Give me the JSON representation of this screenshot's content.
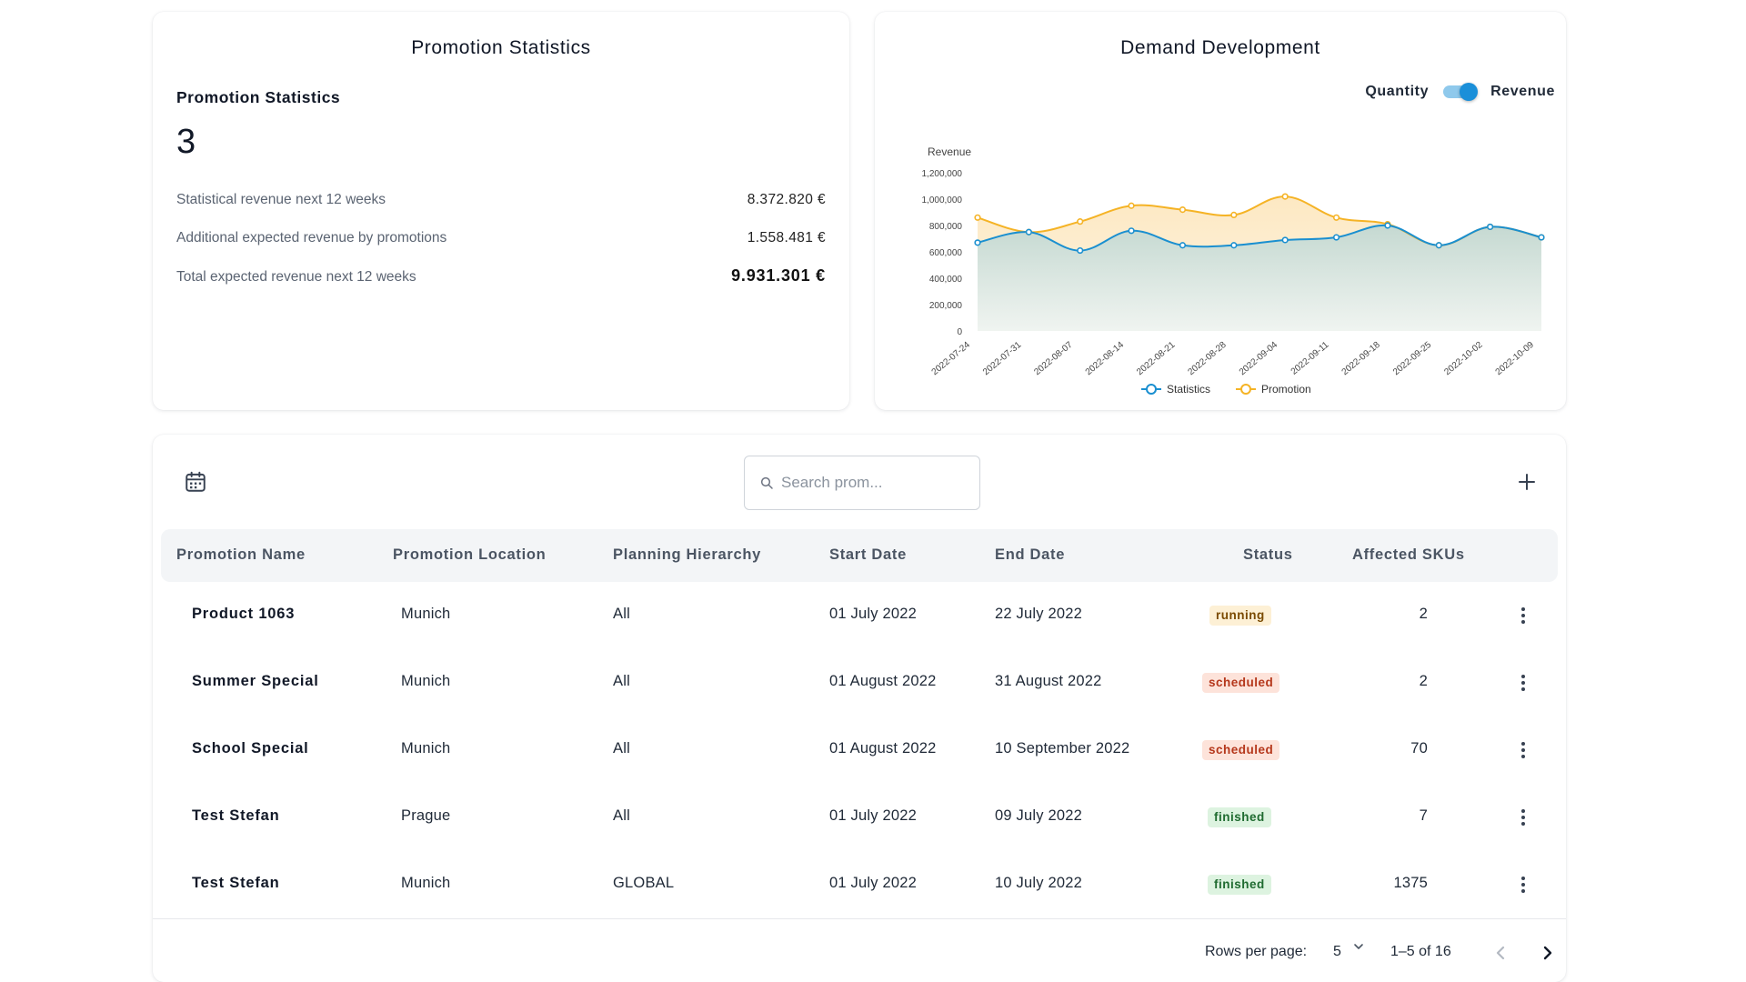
{
  "stats_card": {
    "title": "Promotion Statistics",
    "subtitle": "Promotion Statistics",
    "count": "3",
    "rows": [
      {
        "label": "Statistical revenue next 12 weeks",
        "value": "8.372.820 €"
      },
      {
        "label": "Additional expected revenue by promotions",
        "value": "1.558.481 €"
      },
      {
        "label": "Total expected revenue next 12 weeks",
        "value": "9.931.301 €"
      }
    ]
  },
  "demand_card": {
    "title": "Demand Development",
    "toggle": {
      "left_label": "Quantity",
      "right_label": "Revenue",
      "selected": "Revenue"
    }
  },
  "chart_data": {
    "type": "area",
    "title": "",
    "ylabel": "Revenue",
    "xlabel": "",
    "x": [
      "2022-07-24",
      "2022-07-31",
      "2022-08-07",
      "2022-08-14",
      "2022-08-21",
      "2022-08-28",
      "2022-09-04",
      "2022-09-11",
      "2022-09-18",
      "2022-09-25",
      "2022-10-02",
      "2022-10-09"
    ],
    "ylim": [
      0,
      1200000
    ],
    "yticks": [
      "0",
      "200,000",
      "400,000",
      "600,000",
      "800,000",
      "1,000,000",
      "1,200,000"
    ],
    "grid": false,
    "legend_position": "bottom",
    "series": [
      {
        "name": "Statistics",
        "color": "#1a8fd0",
        "values": [
          670000,
          750000,
          610000,
          760000,
          650000,
          650000,
          690000,
          710000,
          800000,
          650000,
          790000,
          710000
        ]
      },
      {
        "name": "Promotion",
        "color": "#f5b325",
        "values": [
          860000,
          750000,
          830000,
          950000,
          920000,
          880000,
          1020000,
          860000,
          810000,
          650000,
          790000,
          710000
        ]
      }
    ]
  },
  "toolbar": {
    "calendar_icon": "calendar-icon",
    "search_placeholder": "Search prom...",
    "search_value": "",
    "add_icon": "plus-icon"
  },
  "table": {
    "columns": [
      "Promotion Name",
      "Promotion Location",
      "Planning Hierarchy",
      "Start Date",
      "End Date",
      "Status",
      "Affected SKUs"
    ],
    "rows": [
      {
        "name": "Product 1063",
        "location": "Munich",
        "hierarchy": "All",
        "start": "01 July 2022",
        "end": "22 July 2022",
        "status": "running",
        "skus": "2"
      },
      {
        "name": "Summer Special",
        "location": "Munich",
        "hierarchy": "All",
        "start": "01 August 2022",
        "end": "31 August 2022",
        "status": "scheduled",
        "skus": "2"
      },
      {
        "name": "School Special",
        "location": "Munich",
        "hierarchy": "All",
        "start": "01 August 2022",
        "end": "10 September 2022",
        "status": "scheduled",
        "skus": "70"
      },
      {
        "name": "Test Stefan",
        "location": "Prague",
        "hierarchy": "All",
        "start": "01 July 2022",
        "end": "09 July 2022",
        "status": "finished",
        "skus": "7"
      },
      {
        "name": "Test Stefan",
        "location": "Munich",
        "hierarchy": "GLOBAL",
        "start": "01 July 2022",
        "end": "10 July 2022",
        "status": "finished",
        "skus": "1375"
      }
    ]
  },
  "pagination": {
    "rows_per_page_label": "Rows per page:",
    "rows_per_page": "5",
    "range": "1–5 of 16"
  },
  "colors": {
    "accent": "#1a8fd9",
    "statistics_line": "#1a8fd0",
    "promotion_line": "#f5b325",
    "running_bg": "#fdf0d5",
    "scheduled_bg": "#fde3da",
    "finished_bg": "#ddf3e0"
  }
}
